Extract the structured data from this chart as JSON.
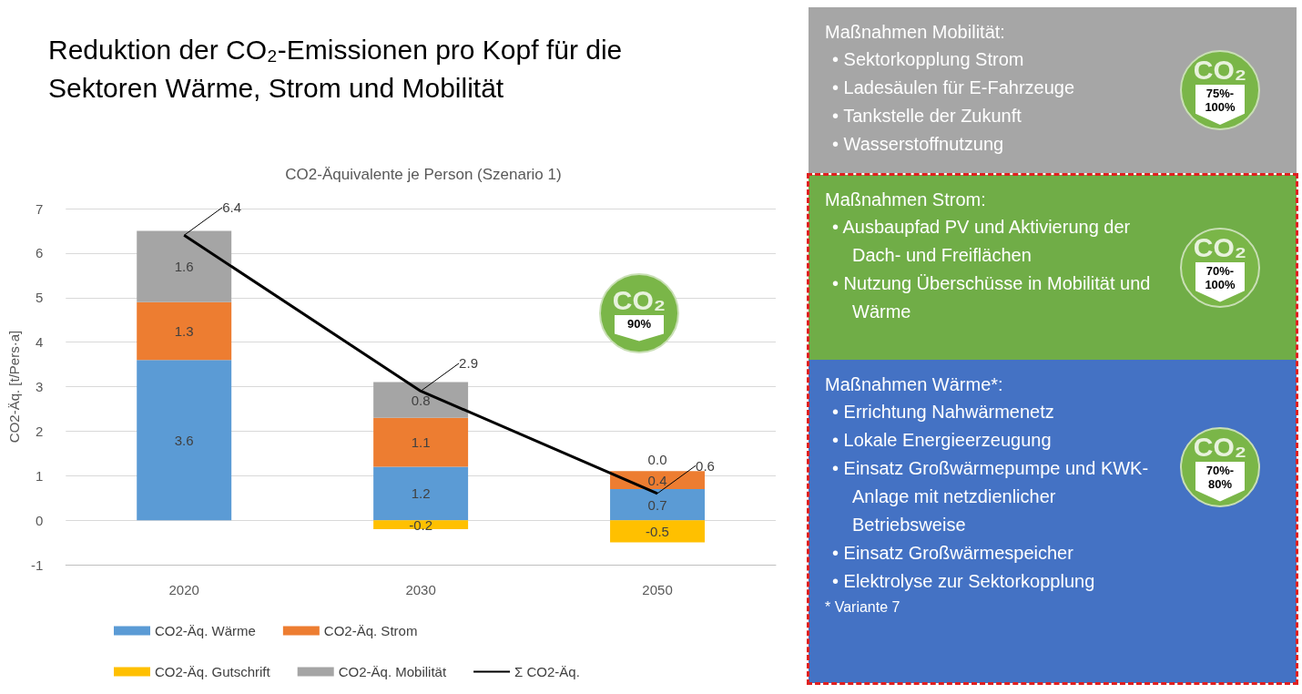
{
  "chart_data": [
    {
      "type": "bar",
      "title": "Reduktion der CO₂-Emissionen pro Kopf für die Sektoren Wärme, Strom und Mobilität",
      "subtitle": "CO2-Äquivalente je Person (Szenario 1)",
      "ylabel": "CO2-Äq. [t/Pers·a]",
      "categories": [
        "2020",
        "2030",
        "2050"
      ],
      "stacked": true,
      "series": [
        {
          "name": "CO2-Äq. Wärme",
          "color": "#5b9bd5",
          "values": [
            3.6,
            1.2,
            0.7
          ]
        },
        {
          "name": "CO2-Äq. Strom",
          "color": "#ed7d31",
          "values": [
            1.3,
            1.1,
            0.4
          ]
        },
        {
          "name": "CO2-Äq. Gutschrift",
          "color": "#ffc000",
          "values": [
            null,
            -0.2,
            -0.5
          ]
        },
        {
          "name": "CO2-Äq. Mobilität",
          "color": "#a5a5a5",
          "values": [
            1.6,
            0.8,
            0.0
          ],
          "value_labels": [
            "1.6",
            "0.8",
            "0.0"
          ]
        },
        {
          "name": "Σ CO2-Äq.",
          "type": "line",
          "color": "#000000",
          "values": [
            6.4,
            2.9,
            0.6
          ]
        }
      ],
      "ylim": [
        -1,
        7
      ],
      "yticks": [
        -1,
        0,
        1,
        2,
        3,
        4,
        5,
        6,
        7
      ],
      "grid": "y",
      "legend": "bottom",
      "data_labels": true,
      "marker": "none",
      "annotations": [
        "CO₂",
        "90%"
      ]
    },
    {
      "type": "other",
      "title": "Maßnahmen Mobilität:",
      "annotations": [
        "• Sektorkopplung Strom",
        "• Ladesäulen für E-Fahrzeuge",
        "• Tankstelle der Zukunft",
        "• Wasserstoffnutzung",
        "CO₂",
        "75%-100%"
      ]
    },
    {
      "type": "other",
      "title": "Maßnahmen Strom:",
      "annotations": [
        "• Ausbaupfad PV und Aktivierung der Dach- und Freiflächen",
        "• Nutzung Überschüsse in Mobilität und Wärme",
        "CO₂",
        "70%-100%"
      ]
    },
    {
      "type": "other",
      "title": "Maßnahmen Wärme*:",
      "subtitle": "* Variante 7",
      "annotations": [
        "• Errichtung Nahwärmenetz",
        "• Lokale Energieerzeugung",
        "• Einsatz Großwärmepumpe und KWK-Anlage mit netzdienlicher Betriebsweise",
        "• Einsatz Großwärmespeicher",
        "• Elektrolyse zur Sektorkopplung",
        "CO₂",
        "70%-80%"
      ]
    }
  ]
}
